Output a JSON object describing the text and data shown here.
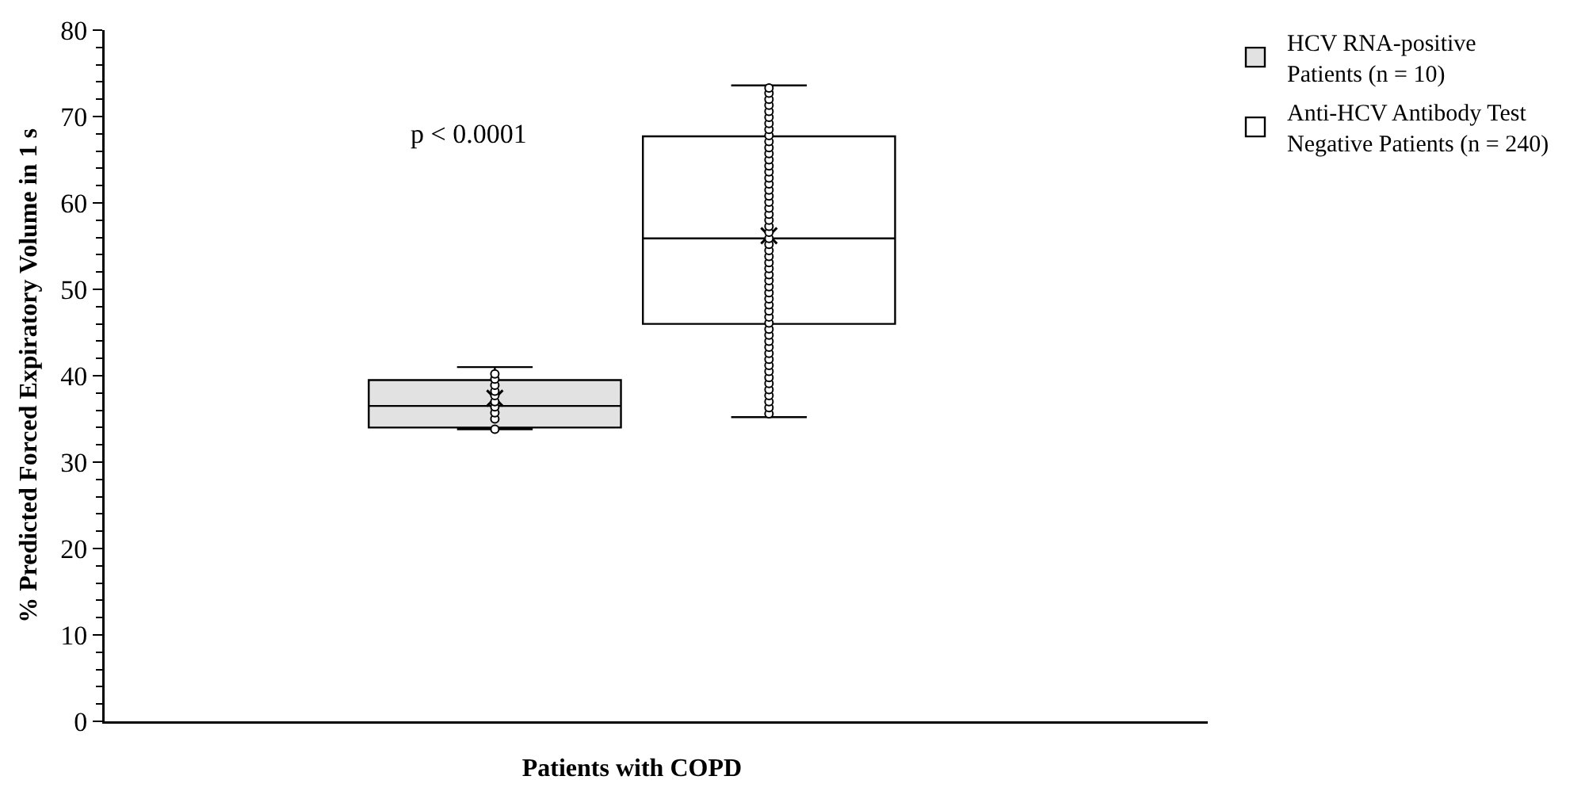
{
  "chart_data": {
    "type": "box",
    "categories": [
      "Patients with COPD"
    ],
    "ylabel": "% Predicted Forced Expiratory Volume in 1 s",
    "ylim": [
      0,
      80
    ],
    "yticks": [
      0,
      {
        "value": 2,
        "label": null
      },
      {
        "value": 4,
        "label": null
      },
      {
        "value": 6,
        "label": null
      },
      {
        "value": 8,
        "label": null
      },
      10,
      {
        "value": 12,
        "label": null
      },
      {
        "value": 14,
        "label": null
      },
      {
        "value": 16,
        "label": null
      },
      {
        "value": 18,
        "label": null
      },
      20,
      {
        "value": 22,
        "label": null
      },
      {
        "value": 24,
        "label": null
      },
      {
        "value": 26,
        "label": null
      },
      {
        "value": 28,
        "label": null
      },
      30,
      {
        "value": 32,
        "label": null
      },
      {
        "value": 34,
        "label": null
      },
      {
        "value": 36,
        "label": null
      },
      {
        "value": 38,
        "label": null
      },
      40,
      {
        "value": 42,
        "label": null
      },
      {
        "value": 44,
        "label": null
      },
      {
        "value": 46,
        "label": null
      },
      {
        "value": 48,
        "label": null
      },
      50,
      {
        "value": 52,
        "label": null
      },
      {
        "value": 54,
        "label": null
      },
      {
        "value": 56,
        "label": null
      },
      {
        "value": 58,
        "label": null
      },
      60,
      {
        "value": 62,
        "label": null
      },
      {
        "value": 64,
        "label": null
      },
      {
        "value": 66,
        "label": null
      },
      {
        "value": 68,
        "label": null
      },
      70,
      {
        "value": 72,
        "label": null
      },
      {
        "value": 74,
        "label": null
      },
      {
        "value": 76,
        "label": null
      },
      {
        "value": 78,
        "label": null
      },
      80
    ],
    "legend": "top right",
    "annotations": [
      "p < 0.0001"
    ],
    "series": [
      {
        "name": "HCV RNA-positive Patients (n = 10)",
        "color": "#e2e2e2",
        "boxes": [
          {
            "low": 33.8,
            "q1": 34.0,
            "median": 36.5,
            "q3": 39.5,
            "high": 41.0,
            "mean": 37.4
          }
        ]
      },
      {
        "name": "Anti-HCV Antibody Test Negative Patients (n = 240)",
        "color": "#ffffff",
        "boxes": [
          {
            "low": 35.2,
            "q1": 46.0,
            "median": 55.9,
            "q3": 67.7,
            "high": 73.6,
            "mean": 56.2
          }
        ]
      },
      {
        "type": "scatter",
        "marker": "circle",
        "color": "#000000",
        "x": [
          "Patients with COPD",
          "Patients with COPD",
          "Patients with COPD",
          "Patients with COPD",
          "Patients with COPD",
          "Patients with COPD",
          "Patients with COPD",
          "Patients with COPD",
          "Patients with COPD",
          "Patients with COPD"
        ],
        "values": [
          33.8,
          35.0,
          35.7,
          36.4,
          37.0,
          37.7,
          38.2,
          38.9,
          39.6,
          40.2
        ]
      },
      {
        "type": "scatter",
        "marker": "circle",
        "color": "#000000",
        "x": [
          "Patients with COPD",
          "Patients with COPD",
          "Patients with COPD",
          "Patients with COPD",
          "Patients with COPD",
          "Patients with COPD",
          "Patients with COPD",
          "Patients with COPD",
          "Patients with COPD",
          "Patients with COPD",
          "Patients with COPD",
          "Patients with COPD",
          "Patients with COPD",
          "Patients with COPD",
          "Patients with COPD",
          "Patients with COPD",
          "Patients with COPD",
          "Patients with COPD",
          "Patients with COPD",
          "Patients with COPD",
          "Patients with COPD",
          "Patients with COPD",
          "Patients with COPD",
          "Patients with COPD",
          "Patients with COPD",
          "Patients with COPD",
          "Patients with COPD",
          "Patients with COPD",
          "Patients with COPD",
          "Patients with COPD",
          "Patients with COPD",
          "Patients with COPD",
          "Patients with COPD",
          "Patients with COPD",
          "Patients with COPD",
          "Patients with COPD",
          "Patients with COPD",
          "Patients with COPD",
          "Patients with COPD",
          "Patients with COPD",
          "Patients with COPD",
          "Patients with COPD",
          "Patients with COPD",
          "Patients with COPD",
          "Patients with COPD",
          "Patients with COPD",
          "Patients with COPD",
          "Patients with COPD",
          "Patients with COPD",
          "Patients with COPD",
          "Patients with COPD",
          "Patients with COPD",
          "Patients with COPD",
          "Patients with COPD",
          "Patients with COPD"
        ],
        "values": [
          35.6,
          36.3,
          37.0,
          37.7,
          38.4,
          39.1,
          39.8,
          40.5,
          41.2,
          41.9,
          42.6,
          43.3,
          44.0,
          44.7,
          45.4,
          46.1,
          46.8,
          47.5,
          48.2,
          48.9,
          49.6,
          50.3,
          51.0,
          51.7,
          52.4,
          53.1,
          53.8,
          54.5,
          55.2,
          55.9,
          56.6,
          57.3,
          58.0,
          58.7,
          59.4,
          60.1,
          60.8,
          61.5,
          62.2,
          62.9,
          63.6,
          64.3,
          65.0,
          65.7,
          66.4,
          67.1,
          67.8,
          68.5,
          69.2,
          69.9,
          70.6,
          71.3,
          72.0,
          72.7,
          73.3
        ]
      }
    ]
  }
}
